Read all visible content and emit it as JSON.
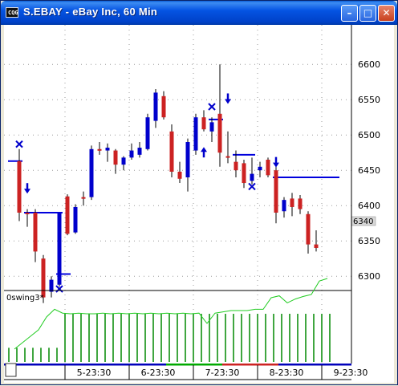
{
  "window": {
    "title": "S.EBAY - eBay Inc, 60 Min",
    "icon_label": "CQG",
    "buttons": [
      "minimize",
      "maximize",
      "close"
    ]
  },
  "indicator": {
    "label": "0swing3*"
  },
  "price_label": "6340",
  "colors": {
    "up": "#0000cc",
    "down": "#cc2222",
    "marker": "#0000cc",
    "level_line": "#0000dd",
    "indicator_line": "#22cc22",
    "indicator_bars": "#008800",
    "grid": "#9a9a9a",
    "axis_text": "#000000",
    "price_tag_bg": "#d8d8d8"
  },
  "chart_data": [
    {
      "type": "candlestick",
      "title": "S.EBAY - eBay Inc, 60 Min",
      "ylim": [
        6255,
        6610
      ],
      "y_ticks": [
        6300,
        6350,
        6400,
        6450,
        6500,
        6550,
        6600
      ],
      "x_ticks": [
        "5-23:30",
        "6-23:30",
        "7-23:30",
        "8-23:30",
        "9-23:30"
      ],
      "tick_bar_index": [
        6,
        14,
        22,
        30,
        38
      ],
      "grid": true,
      "last_price": 6340,
      "bars": [
        {
          "o": 6463,
          "h": 6480,
          "l": 6378,
          "c": 6390
        },
        {
          "o": 6390,
          "h": 6395,
          "l": 6370,
          "c": 6388
        },
        {
          "o": 6390,
          "h": 6395,
          "l": 6320,
          "c": 6335
        },
        {
          "o": 6325,
          "h": 6330,
          "l": 6262,
          "c": 6270
        },
        {
          "o": 6278,
          "h": 6300,
          "l": 6270,
          "c": 6295
        },
        {
          "o": 6288,
          "h": 6390,
          "l": 6285,
          "c": 6390
        },
        {
          "o": 6413,
          "h": 6416,
          "l": 6358,
          "c": 6360
        },
        {
          "o": 6362,
          "h": 6402,
          "l": 6360,
          "c": 6398
        },
        {
          "o": 6412,
          "h": 6420,
          "l": 6400,
          "c": 6410
        },
        {
          "o": 6412,
          "h": 6485,
          "l": 6408,
          "c": 6480
        },
        {
          "o": 6480,
          "h": 6490,
          "l": 6472,
          "c": 6478
        },
        {
          "o": 6478,
          "h": 6488,
          "l": 6462,
          "c": 6482
        },
        {
          "o": 6478,
          "h": 6480,
          "l": 6445,
          "c": 6458
        },
        {
          "o": 6458,
          "h": 6470,
          "l": 6450,
          "c": 6468
        },
        {
          "o": 6468,
          "h": 6488,
          "l": 6465,
          "c": 6478
        },
        {
          "o": 6472,
          "h": 6490,
          "l": 6468,
          "c": 6482
        },
        {
          "o": 6480,
          "h": 6530,
          "l": 6478,
          "c": 6525
        },
        {
          "o": 6520,
          "h": 6565,
          "l": 6510,
          "c": 6560
        },
        {
          "o": 6555,
          "h": 6562,
          "l": 6522,
          "c": 6525
        },
        {
          "o": 6505,
          "h": 6515,
          "l": 6440,
          "c": 6448
        },
        {
          "o": 6448,
          "h": 6462,
          "l": 6432,
          "c": 6438
        },
        {
          "o": 6440,
          "h": 6495,
          "l": 6420,
          "c": 6490
        },
        {
          "o": 6478,
          "h": 6530,
          "l": 6472,
          "c": 6525
        },
        {
          "o": 6525,
          "h": 6535,
          "l": 6505,
          "c": 6508
        },
        {
          "o": 6505,
          "h": 6525,
          "l": 6490,
          "c": 6518
        },
        {
          "o": 6530,
          "h": 6600,
          "l": 6455,
          "c": 6475
        },
        {
          "o": 6470,
          "h": 6505,
          "l": 6460,
          "c": 6468
        },
        {
          "o": 6462,
          "h": 6478,
          "l": 6440,
          "c": 6450
        },
        {
          "o": 6460,
          "h": 6465,
          "l": 6425,
          "c": 6432
        },
        {
          "o": 6435,
          "h": 6468,
          "l": 6430,
          "c": 6445
        },
        {
          "o": 6450,
          "h": 6462,
          "l": 6440,
          "c": 6455
        },
        {
          "o": 6465,
          "h": 6468,
          "l": 6440,
          "c": 6443
        },
        {
          "o": 6450,
          "h": 6455,
          "l": 6375,
          "c": 6390
        },
        {
          "o": 6392,
          "h": 6412,
          "l": 6383,
          "c": 6408
        },
        {
          "o": 6410,
          "h": 6418,
          "l": 6385,
          "c": 6398
        },
        {
          "o": 6410,
          "h": 6415,
          "l": 6388,
          "c": 6395
        },
        {
          "o": 6388,
          "h": 6392,
          "l": 6332,
          "c": 6345
        },
        {
          "o": 6345,
          "h": 6365,
          "l": 6335,
          "c": 6340
        }
      ],
      "level_lines": [
        {
          "price": 6463,
          "from_bar": -1,
          "to_bar": 0
        },
        {
          "price": 6390,
          "from_bar": 1,
          "to_bar": 5
        },
        {
          "price": 6303,
          "from_bar": 5,
          "to_bar": 6
        },
        {
          "price": 6522,
          "from_bar": 24,
          "to_bar": 25
        },
        {
          "price": 6472,
          "from_bar": 27,
          "to_bar": 29
        },
        {
          "price": 6440,
          "from_bar": 32,
          "to_bar": 39.5
        }
      ],
      "markers": [
        {
          "type": "x",
          "bar": 0,
          "price": 6487
        },
        {
          "type": "arrow-down",
          "bar": 1,
          "price": 6425
        },
        {
          "type": "x",
          "bar": 5,
          "price": 6282
        },
        {
          "type": "arrow-up",
          "bar": 23,
          "price": 6475
        },
        {
          "type": "x",
          "bar": 24,
          "price": 6540
        },
        {
          "type": "arrow-down",
          "bar": 26,
          "price": 6552
        },
        {
          "type": "x",
          "bar": 29,
          "price": 6427
        },
        {
          "type": "arrow-down",
          "bar": 32,
          "price": 6462
        }
      ]
    },
    {
      "type": "bar+line",
      "title": "0swing3*",
      "bars": [
        {
          "from_bar": -1,
          "to_bar": 5,
          "level": 0.22
        },
        {
          "from_bar": 6,
          "to_bar": 39,
          "level": 0.75
        }
      ],
      "line": [
        0.2,
        0.3,
        0.4,
        0.5,
        0.7,
        0.82,
        0.76,
        0.75,
        0.76,
        0.75,
        0.75,
        0.76,
        0.75,
        0.76,
        0.75,
        0.76,
        0.75,
        0.76,
        0.75,
        0.76,
        0.75,
        0.76,
        0.75,
        0.76,
        0.6,
        0.76,
        0.78,
        0.8,
        0.8,
        0.8,
        0.82,
        0.82,
        1.0,
        1.03,
        0.92,
        0.98,
        1.02,
        1.05,
        1.26,
        1.3
      ]
    }
  ]
}
